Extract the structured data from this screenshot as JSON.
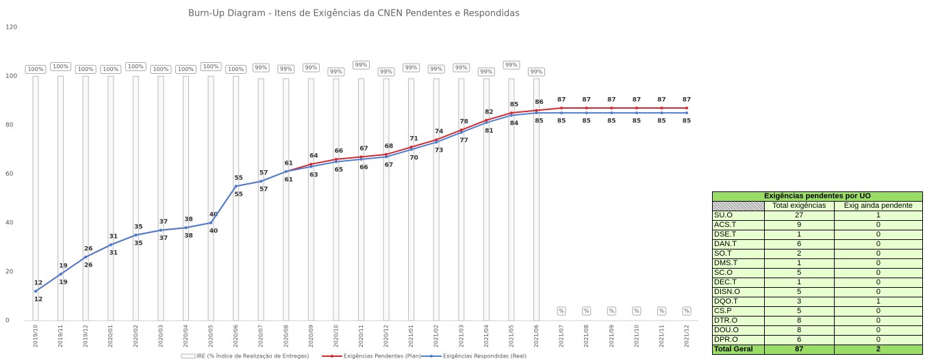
{
  "chart_data": {
    "type": "bar-line",
    "title": "Burn-Up Diagram - Itens de Exigências da CNEN Pendentes e Respondidas",
    "categories": [
      "2019/10",
      "2019/11",
      "2019/12",
      "2020/01",
      "2020/02",
      "2020/03",
      "2020/04",
      "2020/05",
      "2020/06",
      "2020/07",
      "2020/08",
      "2020/09",
      "2020/10",
      "2020/11",
      "2020/12",
      "2021/01",
      "2021/02",
      "2021/03",
      "2021/04",
      "2021/05",
      "2021/06",
      "2021/07",
      "2021/08",
      "2021/09",
      "2021/10",
      "2021/11",
      "2021/12"
    ],
    "ylim": [
      0,
      120
    ],
    "yticks": [
      0,
      20,
      40,
      60,
      80,
      100,
      120
    ],
    "series": [
      {
        "name": "IRE (% Índice de Realização de Entregas)",
        "kind": "bar",
        "color": "#bbbbbb",
        "values": [
          100,
          100,
          100,
          100,
          100,
          100,
          100,
          100,
          100,
          99,
          99,
          99,
          99,
          99,
          99,
          99,
          99,
          99,
          99,
          99,
          99,
          null,
          null,
          null,
          null,
          null,
          null
        ],
        "value_labels": [
          "100%",
          "100%",
          "100%",
          "100%",
          "100%",
          "100%",
          "100%",
          "100%",
          "100%",
          "99%",
          "99%",
          "99%",
          "99%",
          "99%",
          "99%",
          "99%",
          "99%",
          "99%",
          "99%",
          "99%",
          "99%",
          "%",
          "%",
          "%",
          "%",
          "%",
          "%"
        ]
      },
      {
        "name": "Exigências Pendentes (Plan)",
        "kind": "line",
        "color": "#d9262b",
        "values": [
          12,
          19,
          26,
          31,
          35,
          37,
          38,
          40,
          55,
          57,
          61,
          64,
          66,
          67,
          68,
          71,
          74,
          78,
          82,
          85,
          86,
          87,
          87,
          87,
          87,
          87,
          87
        ]
      },
      {
        "name": "Exigências Respondidas (Real)",
        "kind": "line",
        "color": "#4a7fd4",
        "values": [
          12,
          19,
          26,
          31,
          35,
          37,
          38,
          40,
          55,
          57,
          61,
          63,
          65,
          66,
          67,
          70,
          73,
          77,
          81,
          84,
          85,
          85,
          85,
          85,
          85,
          85,
          85
        ]
      }
    ]
  },
  "table": {
    "title": "Exigências pendentes por UO",
    "headers": [
      "Total exigências",
      "Exig ainda pendente"
    ],
    "rows": [
      [
        "SU.O",
        27,
        1
      ],
      [
        "ACS.T",
        9,
        0
      ],
      [
        "DSE.T",
        1,
        0
      ],
      [
        "DAN.T",
        6,
        0
      ],
      [
        "SO.T",
        2,
        0
      ],
      [
        "DMS.T",
        1,
        0
      ],
      [
        "SC.O",
        5,
        0
      ],
      [
        "DEC.T",
        1,
        0
      ],
      [
        "DISN.O",
        5,
        0
      ],
      [
        "DQO.T",
        3,
        1
      ],
      [
        "CS.P",
        5,
        0
      ],
      [
        "DTR.O",
        8,
        0
      ],
      [
        "DOU.O",
        8,
        0
      ],
      [
        "DPR.O",
        6,
        0
      ]
    ],
    "total": [
      "Total Geral",
      87,
      2
    ]
  }
}
